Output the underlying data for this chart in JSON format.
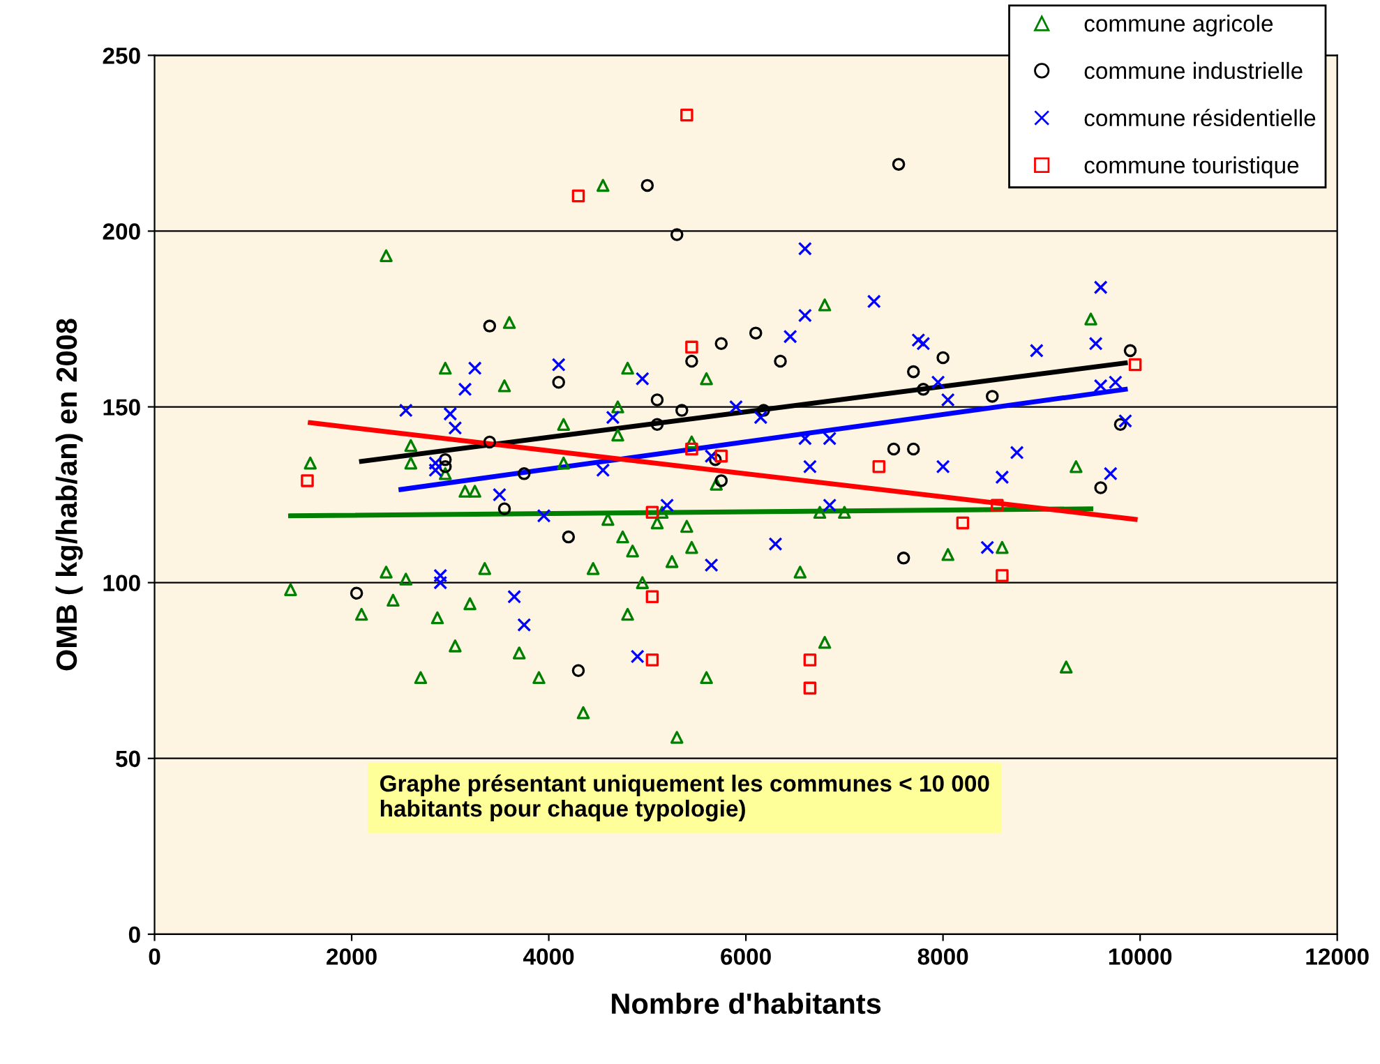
{
  "chart_data": {
    "type": "scatter",
    "xlabel": "Nombre d'habitants",
    "ylabel": "OMB ( kg/hab/an) en 2008",
    "xlim": [
      0,
      12000
    ],
    "ylim": [
      0,
      250
    ],
    "xticks": [
      0,
      2000,
      4000,
      6000,
      8000,
      10000,
      12000
    ],
    "yticks": [
      0,
      50,
      100,
      150,
      200,
      250
    ],
    "grid": "y",
    "legend": "top right",
    "annotations": [
      "Graphe présentant uniquement les communes < 10 000\nhabitants pour chaque typologie)"
    ],
    "series": [
      {
        "name": "commune agricole",
        "color": "#008000",
        "marker": "triangle",
        "x": [
          1380,
          1580,
          2100,
          2350,
          2350,
          2420,
          2550,
          2600,
          2600,
          2700,
          2870,
          2950,
          2950,
          3050,
          3150,
          3200,
          3250,
          3350,
          3550,
          3600,
          3700,
          3900,
          4150,
          4150,
          4350,
          4450,
          4550,
          4600,
          4700,
          4700,
          4750,
          4800,
          4800,
          4850,
          4950,
          5100,
          5150,
          5250,
          5300,
          5400,
          5450,
          5450,
          5600,
          5600,
          5700,
          6550,
          6750,
          6800,
          6800,
          7000,
          8050,
          8600,
          9250,
          9500,
          9350
        ],
        "values": [
          98,
          134,
          91,
          193,
          103,
          95,
          101,
          134,
          139,
          73,
          90,
          131,
          161,
          82,
          126,
          94,
          126,
          104,
          156,
          174,
          80,
          73,
          145,
          134,
          63,
          104,
          213,
          118,
          150,
          142,
          113,
          91,
          161,
          109,
          100,
          117,
          120,
          106,
          56,
          116,
          140,
          110,
          73,
          158,
          128,
          103,
          120,
          179,
          83,
          120,
          108,
          110,
          76,
          175,
          133
        ]
      },
      {
        "name": "commune industrielle",
        "color": "#000000",
        "marker": "circle",
        "x": [
          2050,
          2950,
          2950,
          3400,
          3400,
          3550,
          3750,
          4100,
          4200,
          4300,
          5000,
          5300,
          5100,
          5100,
          5350,
          5450,
          5690,
          5750,
          5750,
          6100,
          6180,
          6350,
          7500,
          7600,
          7550,
          7700,
          7700,
          7800,
          8000,
          8500,
          9600,
          9800,
          9900
        ],
        "values": [
          97,
          135,
          133,
          173,
          140,
          121,
          131,
          157,
          113,
          75,
          213,
          199,
          152,
          145,
          149,
          163,
          135,
          129,
          168,
          171,
          149,
          163,
          138,
          107,
          219,
          138,
          160,
          155,
          164,
          153,
          127,
          145,
          166
        ]
      },
      {
        "name": "commune résidentielle",
        "color": "#0000ff",
        "marker": "cross",
        "x": [
          2550,
          2850,
          2850,
          2900,
          2900,
          3000,
          3050,
          3150,
          3250,
          3500,
          3650,
          3750,
          3950,
          4100,
          4550,
          4650,
          4900,
          4950,
          5200,
          5650,
          5650,
          5900,
          6150,
          6300,
          6450,
          6600,
          6600,
          6600,
          6650,
          6850,
          6850,
          7300,
          7750,
          7800,
          7950,
          8000,
          8050,
          8450,
          8600,
          8750,
          8950,
          9550,
          9600,
          9600,
          9700,
          9750,
          9850
        ],
        "values": [
          149,
          134,
          132,
          100,
          102,
          148,
          144,
          155,
          161,
          125,
          96,
          88,
          119,
          162,
          132,
          147,
          79,
          158,
          122,
          136,
          105,
          150,
          147,
          111,
          170,
          195,
          176,
          141,
          133,
          122,
          141,
          180,
          169,
          168,
          157,
          133,
          152,
          110,
          130,
          137,
          166,
          168,
          184,
          156,
          131,
          157,
          146
        ]
      },
      {
        "name": "commune touristique",
        "color": "#ff0000",
        "marker": "square",
        "x": [
          1550,
          4300,
          5050,
          5050,
          5050,
          5400,
          5450,
          5450,
          5750,
          6650,
          6650,
          7350,
          8200,
          8550,
          8600,
          9950
        ],
        "values": [
          129,
          210,
          96,
          78,
          120,
          233,
          167,
          138,
          136,
          78,
          70,
          133,
          117,
          122,
          102,
          162
        ]
      },
      {
        "type": "line",
        "color": "#008000",
        "x": [
          1380,
          9500
        ],
        "values": [
          119,
          121
        ]
      },
      {
        "type": "line",
        "color": "#000000",
        "x": [
          2100,
          9850
        ],
        "values": [
          134.5,
          162.5
        ]
      },
      {
        "type": "line",
        "color": "#0000ff",
        "x": [
          2500,
          9850
        ],
        "values": [
          126.5,
          155
        ]
      },
      {
        "type": "line",
        "color": "#ff0000",
        "x": [
          1580,
          9950
        ],
        "values": [
          145.5,
          118
        ]
      }
    ]
  }
}
